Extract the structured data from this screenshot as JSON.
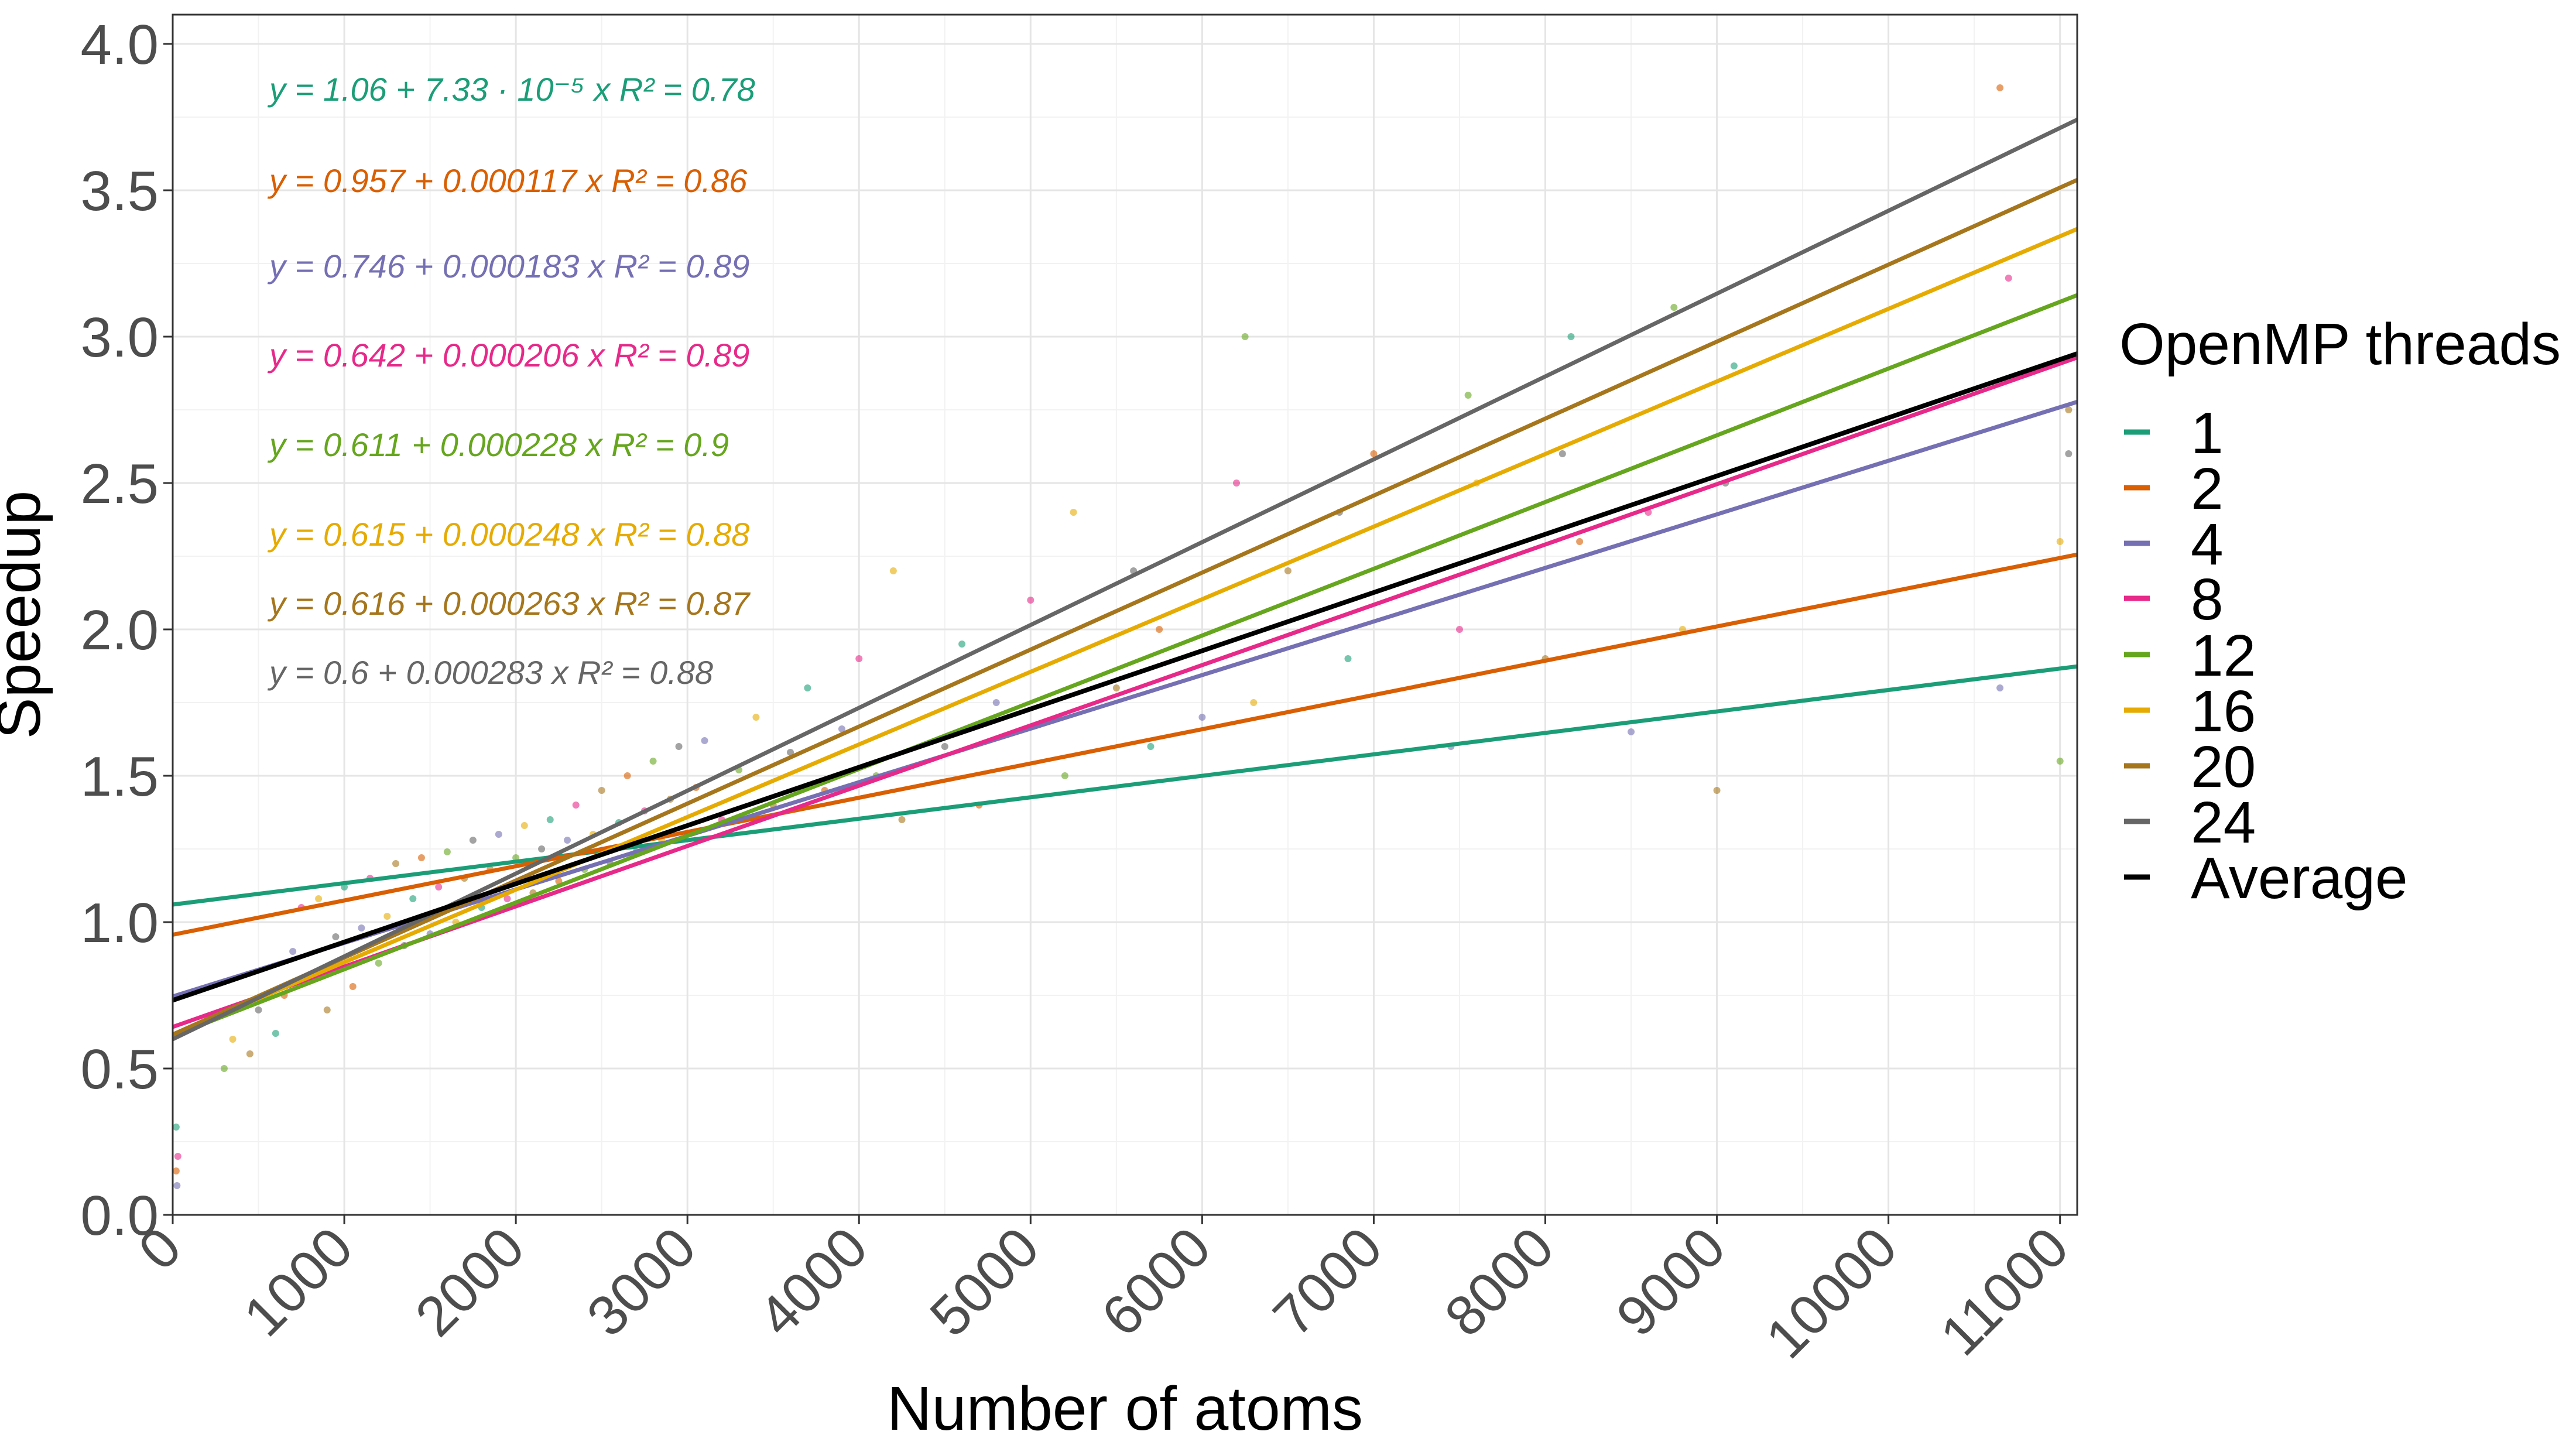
{
  "chart_data": {
    "type": "scatter",
    "xlabel": "Number of atoms",
    "ylabel": "Speedup",
    "xlim": [
      0,
      11100
    ],
    "ylim": [
      0,
      4.1
    ],
    "grid": true,
    "legend_placement": "right",
    "x_ticks": [
      "0",
      "1000",
      "2000",
      "3000",
      "4000",
      "5000",
      "6000",
      "7000",
      "8000",
      "9000",
      "10000",
      "11000"
    ],
    "y_ticks": [
      "0.0",
      "0.5",
      "1.0",
      "1.5",
      "2.0",
      "2.5",
      "3.0",
      "3.5",
      "4.0"
    ],
    "legend_title": "OpenMP threads",
    "series": [
      {
        "name": "1",
        "color": "#1b9e77",
        "intercept": 1.06,
        "slope": 7.33e-05,
        "equation": "y = 1.06 + 7.33 · 10⁻⁵ x   R² = 0.78"
      },
      {
        "name": "2",
        "color": "#d95f02",
        "intercept": 0.957,
        "slope": 0.000117,
        "equation": "y = 0.957 + 0.000117 x   R² = 0.86"
      },
      {
        "name": "4",
        "color": "#7570b3",
        "intercept": 0.746,
        "slope": 0.000183,
        "equation": "y = 0.746 + 0.000183 x   R² = 0.89"
      },
      {
        "name": "8",
        "color": "#e7298a",
        "intercept": 0.642,
        "slope": 0.000206,
        "equation": "y = 0.642 + 0.000206 x   R² = 0.89"
      },
      {
        "name": "12",
        "color": "#66a61e",
        "intercept": 0.611,
        "slope": 0.000228,
        "equation": "y = 0.611 + 0.000228 x   R² = 0.9"
      },
      {
        "name": "16",
        "color": "#e6ab02",
        "intercept": 0.615,
        "slope": 0.000248,
        "equation": "y = 0.615 + 0.000248 x   R² = 0.88"
      },
      {
        "name": "20",
        "color": "#a6761d",
        "intercept": 0.616,
        "slope": 0.000263,
        "equation": "y = 0.616 + 0.000263 x   R² = 0.87"
      },
      {
        "name": "24",
        "color": "#666666",
        "intercept": 0.6,
        "slope": 0.000283,
        "equation": "y = 0.6 + 0.000283 x   R² = 0.88"
      },
      {
        "name": "Average",
        "color": "#000000",
        "intercept": 0.733,
        "slope": 0.000199
      }
    ],
    "points": [
      {
        "x": 600,
        "y": 0.62
      },
      {
        "x": 650,
        "y": 0.75
      },
      {
        "x": 700,
        "y": 0.9
      },
      {
        "x": 750,
        "y": 1.05
      },
      {
        "x": 800,
        "y": 0.82
      },
      {
        "x": 850,
        "y": 1.08
      },
      {
        "x": 900,
        "y": 0.7
      },
      {
        "x": 950,
        "y": 0.95
      },
      {
        "x": 1000,
        "y": 1.12
      },
      {
        "x": 1050,
        "y": 0.78
      },
      {
        "x": 1100,
        "y": 0.98
      },
      {
        "x": 1150,
        "y": 1.15
      },
      {
        "x": 1200,
        "y": 0.86
      },
      {
        "x": 1250,
        "y": 1.02
      },
      {
        "x": 1300,
        "y": 1.2
      },
      {
        "x": 1350,
        "y": 0.92
      },
      {
        "x": 1400,
        "y": 1.08
      },
      {
        "x": 1450,
        "y": 1.22
      },
      {
        "x": 1500,
        "y": 0.96
      },
      {
        "x": 1550,
        "y": 1.12
      },
      {
        "x": 1600,
        "y": 1.24
      },
      {
        "x": 1650,
        "y": 1.0
      },
      {
        "x": 1700,
        "y": 1.15
      },
      {
        "x": 1750,
        "y": 1.28
      },
      {
        "x": 1800,
        "y": 1.05
      },
      {
        "x": 1850,
        "y": 1.18
      },
      {
        "x": 1900,
        "y": 1.3
      },
      {
        "x": 1950,
        "y": 1.08
      },
      {
        "x": 2000,
        "y": 1.22
      },
      {
        "x": 2050,
        "y": 1.33
      },
      {
        "x": 2100,
        "y": 1.1
      },
      {
        "x": 2150,
        "y": 1.25
      },
      {
        "x": 2200,
        "y": 1.35
      },
      {
        "x": 2250,
        "y": 1.14
      },
      {
        "x": 2300,
        "y": 1.28
      },
      {
        "x": 2350,
        "y": 1.4
      },
      {
        "x": 2400,
        "y": 1.18
      },
      {
        "x": 2450,
        "y": 1.3
      },
      {
        "x": 2500,
        "y": 1.45
      },
      {
        "x": 2550,
        "y": 1.2
      },
      {
        "x": 2600,
        "y": 1.34
      },
      {
        "x": 2650,
        "y": 1.5
      },
      {
        "x": 2700,
        "y": 1.24
      },
      {
        "x": 2750,
        "y": 1.38
      },
      {
        "x": 2800,
        "y": 1.55
      },
      {
        "x": 2850,
        "y": 1.28
      },
      {
        "x": 2900,
        "y": 1.42
      },
      {
        "x": 2950,
        "y": 1.6
      },
      {
        "x": 3000,
        "y": 1.3
      },
      {
        "x": 3050,
        "y": 1.46
      },
      {
        "x": 3100,
        "y": 1.62
      },
      {
        "x": 3200,
        "y": 1.35
      },
      {
        "x": 3300,
        "y": 1.52
      },
      {
        "x": 3400,
        "y": 1.7
      },
      {
        "x": 3500,
        "y": 1.4
      },
      {
        "x": 3600,
        "y": 1.58
      },
      {
        "x": 3700,
        "y": 1.8
      },
      {
        "x": 3800,
        "y": 1.45
      },
      {
        "x": 3900,
        "y": 1.66
      },
      {
        "x": 4000,
        "y": 1.9
      },
      {
        "x": 4100,
        "y": 1.5
      },
      {
        "x": 4200,
        "y": 2.2
      },
      {
        "x": 4250,
        "y": 1.35
      },
      {
        "x": 4500,
        "y": 1.6
      },
      {
        "x": 4600,
        "y": 1.95
      },
      {
        "x": 4700,
        "y": 1.4
      },
      {
        "x": 4800,
        "y": 1.75
      },
      {
        "x": 5000,
        "y": 2.1
      },
      {
        "x": 5200,
        "y": 1.5
      },
      {
        "x": 5250,
        "y": 2.4
      },
      {
        "x": 5500,
        "y": 1.8
      },
      {
        "x": 5600,
        "y": 2.2
      },
      {
        "x": 5700,
        "y": 1.6
      },
      {
        "x": 5750,
        "y": 2.0
      },
      {
        "x": 6000,
        "y": 1.7
      },
      {
        "x": 6200,
        "y": 2.5
      },
      {
        "x": 6250,
        "y": 3.0
      },
      {
        "x": 6300,
        "y": 1.75
      },
      {
        "x": 6500,
        "y": 2.2
      },
      {
        "x": 6800,
        "y": 2.4
      },
      {
        "x": 6850,
        "y": 1.9
      },
      {
        "x": 7000,
        "y": 2.6
      },
      {
        "x": 7450,
        "y": 1.6
      },
      {
        "x": 7500,
        "y": 2.0
      },
      {
        "x": 7550,
        "y": 2.8
      },
      {
        "x": 7600,
        "y": 2.5
      },
      {
        "x": 8000,
        "y": 1.9
      },
      {
        "x": 8100,
        "y": 2.6
      },
      {
        "x": 8150,
        "y": 3.0
      },
      {
        "x": 8200,
        "y": 2.3
      },
      {
        "x": 8500,
        "y": 1.65
      },
      {
        "x": 8600,
        "y": 2.4
      },
      {
        "x": 8750,
        "y": 3.1
      },
      {
        "x": 8800,
        "y": 2.0
      },
      {
        "x": 9000,
        "y": 1.45
      },
      {
        "x": 9050,
        "y": 2.5
      },
      {
        "x": 9100,
        "y": 2.9
      },
      {
        "x": 10650,
        "y": 3.85
      },
      {
        "x": 10650,
        "y": 1.8
      },
      {
        "x": 10700,
        "y": 3.2
      },
      {
        "x": 11000,
        "y": 1.55
      },
      {
        "x": 11000,
        "y": 2.3
      },
      {
        "x": 11050,
        "y": 2.75
      },
      {
        "x": 11050,
        "y": 2.6
      },
      {
        "x": 20,
        "y": 0.3
      },
      {
        "x": 20,
        "y": 0.15
      },
      {
        "x": 25,
        "y": 0.1
      },
      {
        "x": 30,
        "y": 0.2
      },
      {
        "x": 300,
        "y": 0.5
      },
      {
        "x": 350,
        "y": 0.6
      },
      {
        "x": 450,
        "y": 0.55
      },
      {
        "x": 500,
        "y": 0.7
      }
    ]
  }
}
